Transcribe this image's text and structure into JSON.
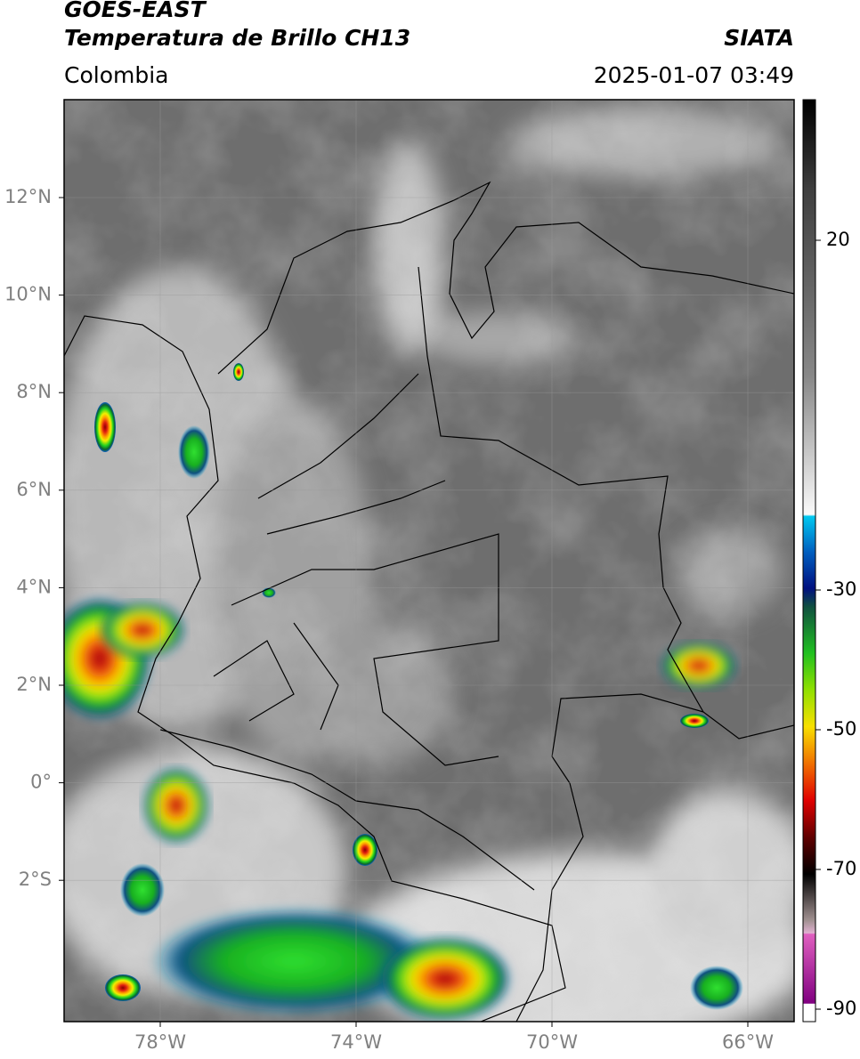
{
  "header": {
    "satellite": "GOES-EAST",
    "product": "Temperatura de Brillo CH13",
    "region": "Colombia",
    "source": "SIATA",
    "datetime": "2025-01-07 03:49"
  },
  "map": {
    "lat_labels": [
      "12°N",
      "10°N",
      "8°N",
      "6°N",
      "4°N",
      "2°N",
      "0°",
      "2°S"
    ],
    "lon_labels": [
      "78°W",
      "74°W",
      "70°W",
      "66°W"
    ]
  },
  "colorbar": {
    "tick_labels": [
      "20",
      "-30",
      "-50",
      "-70",
      "-90"
    ]
  }
}
